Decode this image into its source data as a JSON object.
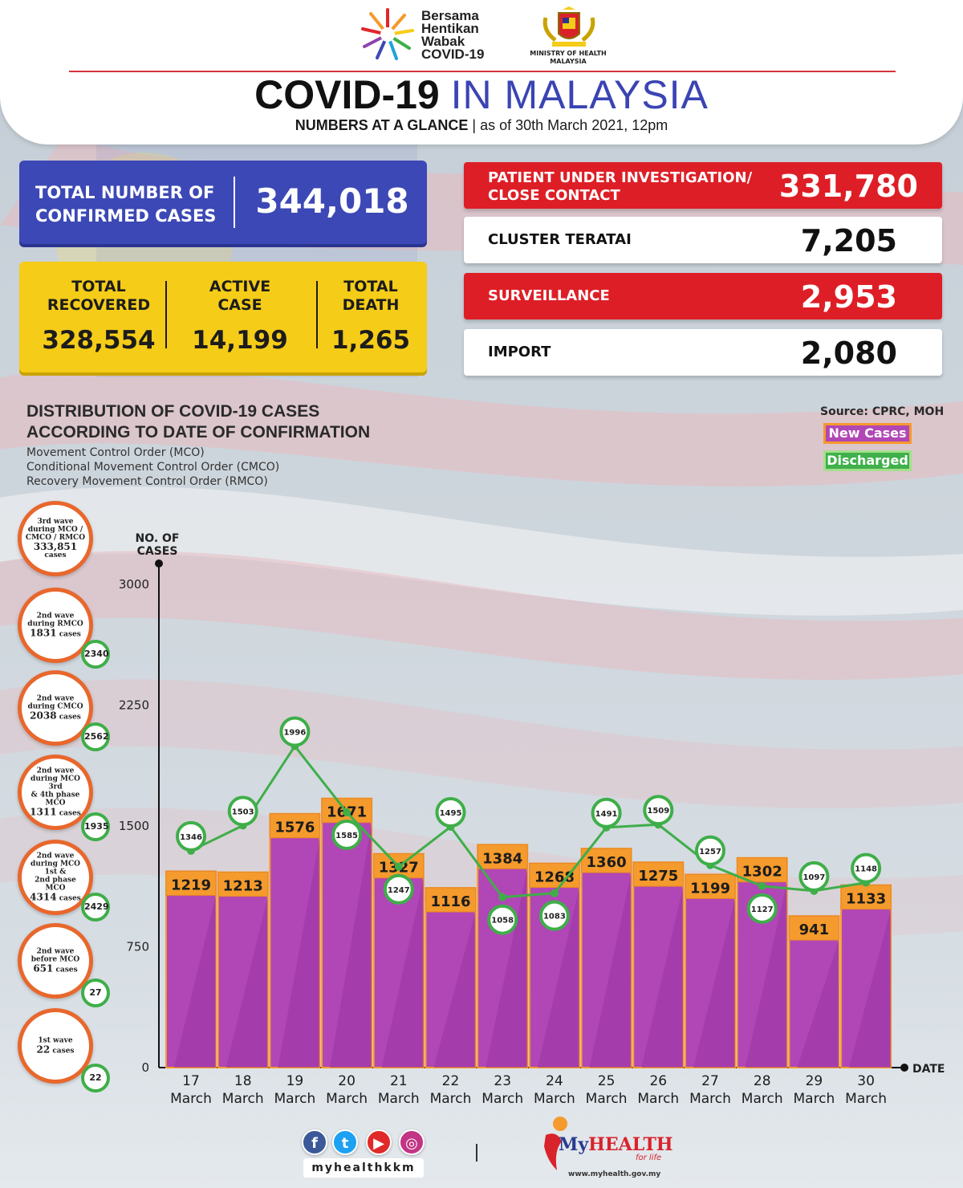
{
  "header": {
    "campaign": [
      "Bersama",
      "Hentikan",
      "Wabak",
      "COVID-19"
    ],
    "ministry": [
      "MINISTRY OF HEALTH",
      "MALAYSIA"
    ],
    "title_bold": "COVID-19",
    "title_light": "IN MALAYSIA",
    "subtitle_bold": "NUMBERS AT A GLANCE",
    "subtitle_sep": "|",
    "subtitle_date": "as of 30th March 2021, 12pm"
  },
  "confirmed": {
    "label_1": "TOTAL NUMBER OF",
    "label_2": "CONFIRMED CASES",
    "value": "344,018"
  },
  "summary": {
    "recovered": {
      "label_1": "TOTAL",
      "label_2": "RECOVERED",
      "value": "328,554"
    },
    "active": {
      "label_1": "ACTIVE",
      "label_2": "CASE",
      "value": "14,199"
    },
    "death": {
      "label_1": "TOTAL",
      "label_2": "DEATH",
      "value": "1,265"
    }
  },
  "clusters": [
    {
      "label_1": "PATIENT UNDER INVESTIGATION/",
      "label_2": "CLOSE CONTACT",
      "value": "331,780",
      "style": "red"
    },
    {
      "label_1": "CLUSTER TERATAI",
      "label_2": "",
      "value": "7,205",
      "style": "white"
    },
    {
      "label_1": "SURVEILLANCE",
      "label_2": "",
      "value": "2,953",
      "style": "red"
    },
    {
      "label_1": "IMPORT",
      "label_2": "",
      "value": "2,080",
      "style": "white"
    }
  ],
  "chart_header": {
    "title_1": "DISTRIBUTION OF COVID-19 CASES",
    "title_2": "ACCORDING TO DATE OF CONFIRMATION",
    "note_1": "Movement Control Order (MCO)",
    "note_2": "Conditional Movement Control Order (CMCO)",
    "note_3": "Recovery Movement Control Order (RMCO)",
    "source": "Source: CPRC, MOH",
    "legend_new": "New Cases",
    "legend_discharged": "Discharged"
  },
  "waves": [
    {
      "lines": [
        "3rd wave",
        "during MCO /",
        "CMCO / RMCO"
      ],
      "count": "333,851",
      "unit": "cases",
      "badge": ""
    },
    {
      "lines": [
        "2nd wave",
        "during RMCO"
      ],
      "count": "1831",
      "unit": "cases",
      "badge": "2340"
    },
    {
      "lines": [
        "2nd wave",
        "during CMCO"
      ],
      "count": "2038",
      "unit": "cases",
      "badge": "2562"
    },
    {
      "lines": [
        "2nd wave",
        "during MCO 3rd",
        "& 4th phase MCO"
      ],
      "count": "1311",
      "unit": "cases",
      "badge": "1935"
    },
    {
      "lines": [
        "2nd wave",
        "during MCO 1st &",
        "2nd phase MCO"
      ],
      "count": "4314",
      "unit": "cases",
      "badge": "2429"
    },
    {
      "lines": [
        "2nd wave",
        "before MCO"
      ],
      "count": "651",
      "unit": "cases",
      "badge": "27"
    },
    {
      "lines": [
        "1st wave"
      ],
      "count": "22",
      "unit": "cases",
      "badge": "22"
    }
  ],
  "chart_data": {
    "type": "bar",
    "title": "DISTRIBUTION OF COVID-19 CASES ACCORDING TO DATE OF CONFIRMATION",
    "ylabel": "NO. OF CASES",
    "xlabel": "DATE",
    "ylim": [
      0,
      3000
    ],
    "yticks": [
      0,
      750,
      1500,
      2250,
      3000
    ],
    "categories": [
      [
        "17",
        "March"
      ],
      [
        "18",
        "March"
      ],
      [
        "19",
        "March"
      ],
      [
        "20",
        "March"
      ],
      [
        "21",
        "March"
      ],
      [
        "22",
        "March"
      ],
      [
        "23",
        "March"
      ],
      [
        "24",
        "March"
      ],
      [
        "25",
        "March"
      ],
      [
        "26",
        "March"
      ],
      [
        "27",
        "March"
      ],
      [
        "28",
        "March"
      ],
      [
        "29",
        "March"
      ],
      [
        "30",
        "March"
      ]
    ],
    "series": [
      {
        "name": "New Cases",
        "kind": "bar",
        "color": "#b146b6",
        "values": [
          1219,
          1213,
          1576,
          1671,
          1327,
          1116,
          1384,
          1268,
          1360,
          1275,
          1199,
          1302,
          941,
          1133
        ]
      },
      {
        "name": "Discharged",
        "kind": "line",
        "color": "#3fae49",
        "values": [
          1346,
          1503,
          1996,
          1585,
          1247,
          1495,
          1058,
          1083,
          1491,
          1509,
          1257,
          1127,
          1097,
          1148
        ]
      }
    ]
  },
  "footer": {
    "handle": "myhealthkkm",
    "brand_1": "My",
    "brand_2": "HEALTH",
    "tagline": "for life",
    "url": "www.myhealth.gov.my"
  },
  "colors": {
    "blue": "#3c48b5",
    "yellow": "#f5cc18",
    "red": "#de1e26",
    "bar": "#b146b6",
    "bar_cap": "#f59a2c",
    "line": "#3fae49"
  }
}
